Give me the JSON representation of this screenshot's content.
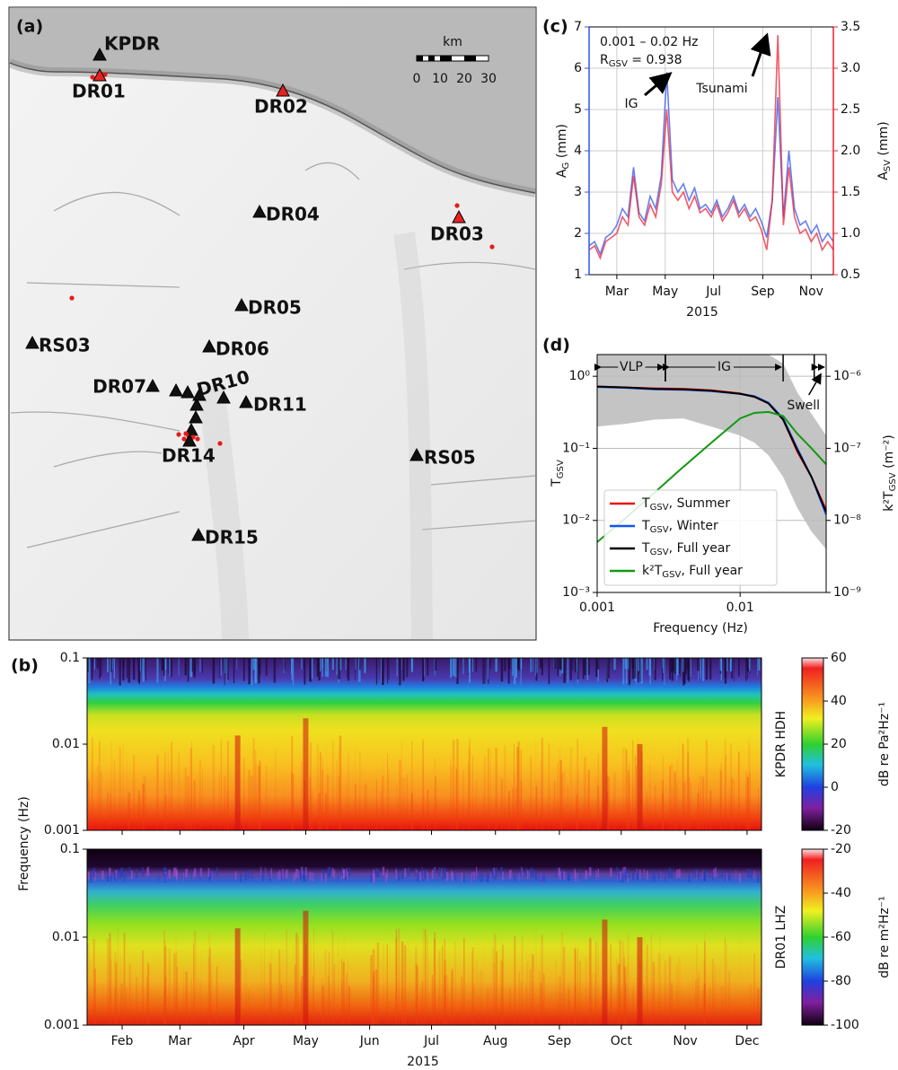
{
  "map": {
    "panel_label": "(a)",
    "stations": [
      "KPDR",
      "DR01",
      "DR02",
      "DR03",
      "DR04",
      "DR05",
      "RS03",
      "DR06",
      "DR07",
      "DR10",
      "DR11",
      "DR14",
      "RS05",
      "DR15"
    ],
    "scale_bar": {
      "unit": "km",
      "labels": [
        "0",
        "10",
        "20",
        "30"
      ]
    }
  },
  "panel_b": {
    "panel_label": "(b)",
    "ylabel": "Frequency (Hz)",
    "xlabel": "2015"
  },
  "chart_data": [
    {
      "type": "line",
      "panel_label": "(c)",
      "band_label": "0.001 – 0.02 Hz",
      "r_label": [
        "R",
        "GSV",
        " = 0.938"
      ],
      "annotations": [
        "IG",
        "Tsunami"
      ],
      "xlabel": "2015",
      "grid": true,
      "x": [
        25,
        32,
        39,
        46,
        53,
        60,
        67,
        74,
        81,
        88,
        95,
        102,
        109,
        116,
        123,
        130,
        137,
        144,
        151,
        158,
        165,
        172,
        179,
        186,
        193,
        200,
        207,
        214,
        221,
        228,
        235,
        242,
        249,
        256,
        263,
        270,
        277,
        284,
        291,
        298,
        305,
        312,
        319,
        326,
        333
      ],
      "xlim": [
        25,
        333
      ],
      "xticks": [
        {
          "value": 60,
          "label": "Mar"
        },
        {
          "value": 121,
          "label": "May"
        },
        {
          "value": 182,
          "label": "Jul"
        },
        {
          "value": 244,
          "label": "Sep"
        },
        {
          "value": 305,
          "label": "Nov"
        }
      ],
      "ylim": [
        1,
        7
      ],
      "yticks": [
        1,
        2,
        3,
        4,
        5,
        6,
        7
      ],
      "y2lim": [
        0.5,
        3.5
      ],
      "y2ticks": [
        0.5,
        {
          "value": 1,
          "label": "1.0"
        },
        1.5,
        {
          "value": 2,
          "label": "2.0"
        },
        2.5,
        {
          "value": 3,
          "label": "3.0"
        },
        3.5
      ],
      "series": [
        {
          "name": [
            "A",
            "G",
            " (mm)"
          ],
          "color": "#3355ee",
          "values": [
            1.7,
            1.8,
            1.5,
            1.9,
            2.0,
            2.2,
            2.6,
            2.4,
            3.6,
            2.5,
            2.3,
            2.9,
            2.6,
            3.4,
            5.9,
            3.3,
            3.0,
            3.2,
            2.8,
            3.1,
            2.6,
            2.7,
            2.5,
            2.8,
            2.4,
            2.6,
            2.9,
            2.5,
            2.7,
            2.4,
            2.6,
            2.3,
            1.9,
            2.8,
            5.3,
            2.4,
            4.0,
            2.6,
            2.2,
            2.3,
            2.0,
            2.2,
            1.8,
            2.0,
            1.8
          ]
        },
        {
          "name": [
            "A",
            "SV",
            " (mm)"
          ],
          "color": "#ee2233",
          "axis": "y2",
          "values": [
            0.8,
            0.85,
            0.7,
            0.9,
            0.95,
            1.0,
            1.2,
            1.1,
            1.7,
            1.2,
            1.1,
            1.35,
            1.2,
            1.6,
            2.5,
            1.5,
            1.4,
            1.5,
            1.3,
            1.45,
            1.25,
            1.3,
            1.2,
            1.35,
            1.15,
            1.25,
            1.4,
            1.2,
            1.3,
            1.15,
            1.2,
            1.05,
            0.8,
            1.4,
            3.4,
            1.1,
            1.8,
            1.2,
            1.0,
            1.05,
            0.9,
            1.0,
            0.8,
            0.9,
            0.8
          ]
        }
      ]
    },
    {
      "type": "loglog",
      "panel_label": "(d)",
      "xlabel": "Frequency (Hz)",
      "ylabel": [
        "T",
        "GSV"
      ],
      "y2label": [
        "k²T",
        "GSV",
        " (m⁻²)"
      ],
      "legend": "lower left",
      "grid": true,
      "x": [
        0.001,
        0.0016,
        0.0025,
        0.004,
        0.0063,
        0.01,
        0.0126,
        0.0158,
        0.02,
        0.0251,
        0.0316,
        0.04
      ],
      "xlim": [
        0.001,
        0.04
      ],
      "xticks": [
        0.001,
        0.01
      ],
      "ylim": [
        0.001,
        2
      ],
      "yticks": [
        {
          "value": 0.001,
          "label": "10⁻³"
        },
        {
          "value": 0.01,
          "label": "10⁻²"
        },
        {
          "value": 0.1,
          "label": "10⁻¹"
        },
        {
          "value": 1,
          "label": "10⁰"
        }
      ],
      "y2lim": [
        1e-09,
        2e-06
      ],
      "y2ticks": [
        {
          "value": 1e-09,
          "label": "10⁻⁹"
        },
        {
          "value": 1e-08,
          "label": "10⁻⁸"
        },
        {
          "value": 1e-07,
          "label": "10⁻⁷"
        },
        {
          "value": 1e-06,
          "label": "10⁻⁶"
        }
      ],
      "band": {
        "color": "#c4c4c4",
        "lower": [
          0.2,
          0.22,
          0.25,
          0.26,
          0.2,
          0.15,
          0.12,
          0.08,
          0.04,
          0.015,
          0.007,
          0.004
        ],
        "upper": [
          2,
          2,
          2,
          2,
          2,
          2,
          2,
          2,
          1.5,
          0.6,
          0.3,
          0.15
        ]
      },
      "regions": [
        {
          "label": "VLP",
          "from": 0.001,
          "to": 0.003
        },
        {
          "label": "IG",
          "from": 0.003,
          "to": 0.02
        },
        {
          "label": "Swell",
          "from": 0.033,
          "to": 0.04
        }
      ],
      "series": [
        {
          "name": [
            "T",
            "GSV",
            ", Summer"
          ],
          "color": "#ee1111",
          "values": [
            0.72,
            0.7,
            0.68,
            0.67,
            0.64,
            0.58,
            0.52,
            0.42,
            0.25,
            0.09,
            0.04,
            0.014
          ]
        },
        {
          "name": [
            "T",
            "GSV",
            ", Winter"
          ],
          "color": "#1155ee",
          "values": [
            0.71,
            0.69,
            0.66,
            0.65,
            0.62,
            0.57,
            0.53,
            0.43,
            0.26,
            0.1,
            0.04,
            0.012
          ]
        },
        {
          "name": [
            "T",
            "GSV",
            ", Full year"
          ],
          "color": "#000000",
          "values": [
            0.72,
            0.7,
            0.67,
            0.66,
            0.63,
            0.57,
            0.52,
            0.42,
            0.25,
            0.095,
            0.04,
            0.013
          ]
        },
        {
          "name": [
            "k²T",
            "GSV",
            ", Full year"
          ],
          "color": "#119911",
          "axis": "y2",
          "values": [
            5e-09,
            1.1e-08,
            2.4e-08,
            5.5e-08,
            1.2e-07,
            2.6e-07,
            3.1e-07,
            3.2e-07,
            2.8e-07,
            1.6e-07,
            1e-07,
            6e-08
          ]
        }
      ]
    },
    {
      "type": "spectrogram",
      "station": "KPDR HDH",
      "log_y": true,
      "ylim": [
        0.001,
        0.1
      ],
      "yticks": [
        0.1,
        0.01,
        0.001
      ],
      "xlim": [
        15,
        342
      ],
      "colorbar": {
        "label": "dB re Pa²Hz⁻¹",
        "lim": [
          -20,
          60
        ],
        "ticks": [
          60,
          40,
          20,
          0,
          -20
        ]
      }
    },
    {
      "type": "spectrogram",
      "station": "DR01 LHZ",
      "log_y": true,
      "ylim": [
        0.001,
        0.1
      ],
      "yticks": [
        0.1,
        0.01,
        0.001
      ],
      "xlim": [
        15,
        342
      ],
      "xticks": [
        {
          "value": 32,
          "label": "Feb"
        },
        {
          "value": 60,
          "label": "Mar"
        },
        {
          "value": 91,
          "label": "Apr"
        },
        {
          "value": 121,
          "label": "May"
        },
        {
          "value": 152,
          "label": "Jun"
        },
        {
          "value": 182,
          "label": "Jul"
        },
        {
          "value": 213,
          "label": "Aug"
        },
        {
          "value": 244,
          "label": "Sep"
        },
        {
          "value": 274,
          "label": "Oct"
        },
        {
          "value": 305,
          "label": "Nov"
        },
        {
          "value": 335,
          "label": "Dec"
        }
      ],
      "colorbar": {
        "label": "dB re m²Hz⁻¹",
        "lim": [
          -100,
          -20
        ],
        "ticks": [
          -20,
          -40,
          -60,
          -80,
          -100
        ]
      }
    }
  ]
}
